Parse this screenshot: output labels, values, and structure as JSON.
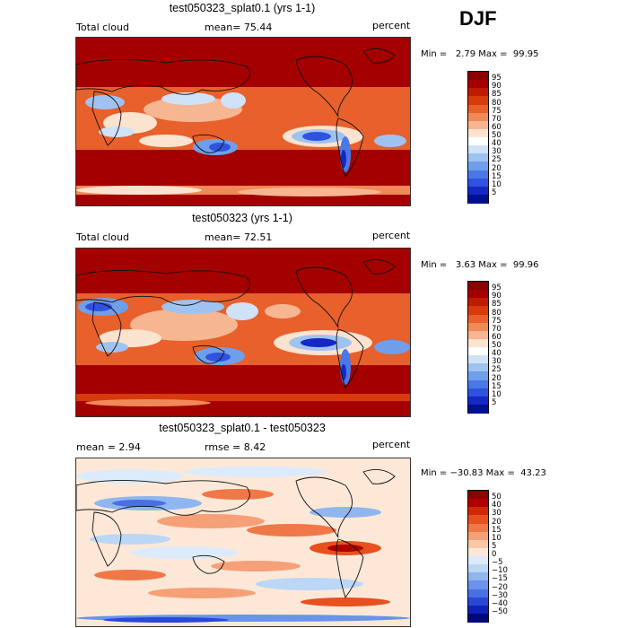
{
  "season": "DJF",
  "panels": [
    {
      "title": "test050323_splat0.1 (yrs 1-1)",
      "left_label": "Total cloud",
      "center_label": "mean=  75.44",
      "units": "percent",
      "minmax": "Min =   2.79 Max =  99.95",
      "colorbar_labels": [
        "95",
        "90",
        "85",
        "80",
        "75",
        "70",
        "60",
        "50",
        "40",
        "30",
        "25",
        "20",
        "15",
        "10",
        "5"
      ]
    },
    {
      "title": "test050323 (yrs 1-1)",
      "left_label": "Total cloud",
      "center_label": "mean=  72.51",
      "units": "percent",
      "minmax": "Min =   3.63 Max =  99.96",
      "colorbar_labels": [
        "95",
        "90",
        "85",
        "80",
        "75",
        "70",
        "60",
        "50",
        "40",
        "30",
        "25",
        "20",
        "15",
        "10",
        "5"
      ]
    },
    {
      "title": "test050323_splat0.1 - test050323",
      "left_label": "mean =   2.94",
      "center_label": "rmse =   8.42",
      "units": "percent",
      "minmax": "Min = −30.83 Max =  43.23",
      "colorbar_labels": [
        "50",
        "40",
        "30",
        "20",
        "15",
        "10",
        "5",
        "0",
        "−5",
        "−10",
        "−15",
        "−20",
        "−30",
        "−40",
        "−50"
      ]
    }
  ],
  "colors": {
    "field_scale": [
      "#8b0000",
      "#a40000",
      "#c01a00",
      "#d83a0c",
      "#e8602c",
      "#f08a58",
      "#f6b692",
      "#fce3d0",
      "#ffffff",
      "#cfe2f7",
      "#9fc3f0",
      "#6f9feb",
      "#4a78e6",
      "#2f52e0",
      "#1428c4",
      "#001090"
    ],
    "diff_scale": [
      "#8b0000",
      "#b00000",
      "#d02800",
      "#e85020",
      "#f07848",
      "#f6a078",
      "#fbc8a8",
      "#fde8d8",
      "#dcebfb",
      "#bcd6f5",
      "#8fb6ef",
      "#6a93ea",
      "#4a6fe4",
      "#2a48d6",
      "#0f22b6",
      "#00087a"
    ]
  }
}
